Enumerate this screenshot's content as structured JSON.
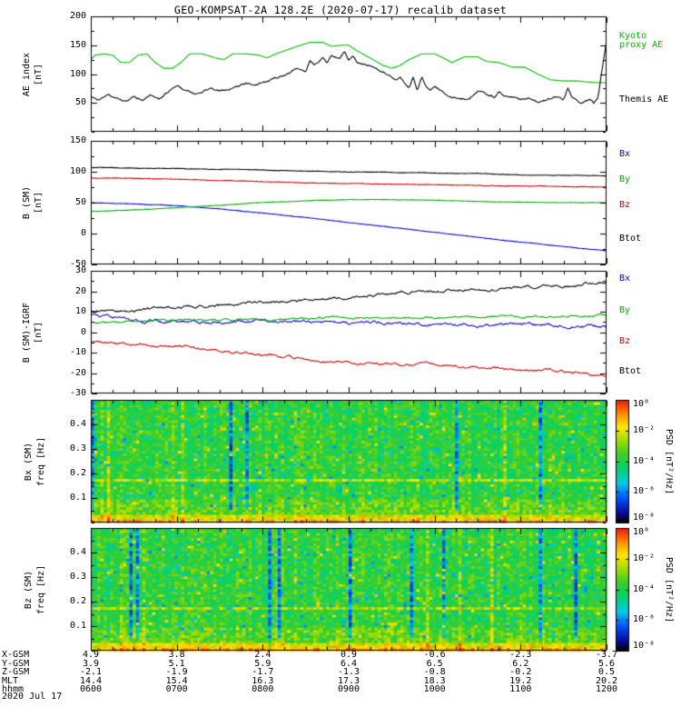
{
  "title": "GEO-KOMPSAT-2A 128.2E (2020-07-17) recalib dataset",
  "chart_data": [
    {
      "type": "line",
      "ylabel": "AE index",
      "ylabel2": "[nT]",
      "ylim": [
        0,
        200
      ],
      "yticks": [
        50,
        100,
        150,
        200
      ],
      "xlim": [
        6,
        12
      ],
      "series": [
        {
          "name": "Kyoto proxy AE",
          "color": "#00bb00",
          "noise": 0,
          "x": [
            6,
            6.05,
            6.15,
            6.25,
            6.35,
            6.45,
            6.55,
            6.65,
            6.75,
            6.85,
            6.95,
            7.05,
            7.15,
            7.3,
            7.45,
            7.55,
            7.65,
            7.8,
            7.95,
            8.05,
            8.15,
            8.25,
            8.4,
            8.55,
            8.7,
            8.8,
            8.9,
            9,
            9.1,
            9.25,
            9.4,
            9.5,
            9.6,
            9.7,
            9.85,
            10,
            10.1,
            10.2,
            10.35,
            10.5,
            10.6,
            10.75,
            10.9,
            11.05,
            11.2,
            11.35,
            11.5,
            11.65,
            11.8,
            11.9,
            12
          ],
          "y": [
            125,
            133,
            135,
            133,
            120,
            120,
            133,
            135,
            120,
            110,
            110,
            120,
            135,
            135,
            128,
            125,
            135,
            135,
            133,
            128,
            135,
            140,
            148,
            155,
            155,
            148,
            150,
            150,
            140,
            128,
            115,
            110,
            115,
            125,
            135,
            135,
            128,
            120,
            130,
            130,
            122,
            120,
            112,
            112,
            100,
            90,
            88,
            88,
            86,
            85,
            85
          ]
        },
        {
          "name": "Themis AE",
          "color": "#000000",
          "noise": 3,
          "x": [
            6,
            6.1,
            6.2,
            6.3,
            6.4,
            6.5,
            6.6,
            6.7,
            6.8,
            6.9,
            7,
            7.1,
            7.2,
            7.3,
            7.4,
            7.5,
            7.6,
            7.7,
            7.8,
            7.9,
            8,
            8.1,
            8.2,
            8.3,
            8.4,
            8.5,
            8.55,
            8.6,
            8.7,
            8.75,
            8.8,
            8.9,
            8.95,
            9,
            9.05,
            9.1,
            9.2,
            9.3,
            9.4,
            9.5,
            9.55,
            9.6,
            9.65,
            9.7,
            9.75,
            9.8,
            9.85,
            9.9,
            9.95,
            10,
            10.1,
            10.2,
            10.3,
            10.4,
            10.5,
            10.6,
            10.7,
            10.75,
            10.8,
            10.9,
            11,
            11.1,
            11.2,
            11.3,
            11.4,
            11.5,
            11.55,
            11.6,
            11.7,
            11.8,
            11.85,
            11.9,
            11.95,
            12
          ],
          "y": [
            62,
            55,
            65,
            58,
            52,
            60,
            55,
            65,
            60,
            70,
            80,
            72,
            65,
            70,
            75,
            70,
            72,
            78,
            85,
            80,
            85,
            90,
            95,
            100,
            110,
            105,
            125,
            115,
            130,
            120,
            135,
            128,
            140,
            125,
            135,
            120,
            115,
            110,
            105,
            95,
            88,
            95,
            85,
            75,
            95,
            70,
            95,
            80,
            72,
            78,
            68,
            60,
            55,
            58,
            70,
            65,
            60,
            72,
            62,
            58,
            55,
            58,
            52,
            55,
            60,
            55,
            75,
            60,
            50,
            55,
            48,
            60,
            110,
            160
          ]
        }
      ],
      "legend": [
        {
          "lines": [
            "Kyoto",
            "proxy AE"
          ],
          "color": "#00bb00"
        },
        {
          "lines": [
            "Themis AE"
          ],
          "color": "#000000"
        }
      ]
    },
    {
      "type": "line",
      "ylabel": "B (SM)",
      "ylabel2": "[nT]",
      "ylim": [
        -50,
        150
      ],
      "yticks": [
        -50,
        0,
        50,
        100,
        150
      ],
      "xlim": [
        6,
        12
      ],
      "series": [
        {
          "name": "Bx",
          "color": "#0000dd",
          "noise": 0.4,
          "x": [
            6,
            6.5,
            7,
            7.5,
            8,
            8.5,
            9,
            9.5,
            10,
            10.5,
            11,
            11.5,
            12
          ],
          "y": [
            50,
            48,
            45,
            40,
            33,
            26,
            18,
            10,
            2,
            -6,
            -14,
            -21,
            -28
          ]
        },
        {
          "name": "By",
          "color": "#00aa00",
          "noise": 0.4,
          "x": [
            6,
            6.5,
            7,
            7.5,
            8,
            8.5,
            9,
            9.5,
            10,
            10.5,
            11,
            11.5,
            12
          ],
          "y": [
            36,
            38,
            42,
            46,
            50,
            53,
            55,
            55,
            54,
            52,
            51,
            50,
            50
          ]
        },
        {
          "name": "Bz",
          "color": "#cc0000",
          "noise": 0.6,
          "x": [
            6,
            6.5,
            7,
            7.5,
            8,
            8.5,
            9,
            9.5,
            10,
            10.5,
            11,
            11.5,
            12
          ],
          "y": [
            90,
            89,
            88,
            86,
            84,
            82,
            81,
            80,
            79,
            78,
            77,
            76,
            75
          ]
        },
        {
          "name": "Btot",
          "color": "#000000",
          "noise": 0.6,
          "x": [
            6,
            6.5,
            7,
            7.5,
            8,
            8.5,
            9,
            9.5,
            10,
            10.5,
            11,
            11.5,
            12
          ],
          "y": [
            107,
            106,
            105,
            104,
            103,
            101,
            100,
            99,
            98,
            97,
            95,
            94,
            93
          ]
        }
      ],
      "legend": [
        {
          "lines": [
            "Bx"
          ],
          "color": "#0000dd"
        },
        {
          "lines": [
            "By"
          ],
          "color": "#00aa00"
        },
        {
          "lines": [
            "Bz"
          ],
          "color": "#cc0000"
        },
        {
          "lines": [
            "Btot"
          ],
          "color": "#000000"
        }
      ]
    },
    {
      "type": "line",
      "ylabel": "B (SM)-IGRF",
      "ylabel2": "[nT]",
      "ylim": [
        -30,
        30
      ],
      "yticks": [
        -30,
        -20,
        -10,
        0,
        10,
        20,
        30
      ],
      "xlim": [
        6,
        12
      ],
      "series": [
        {
          "name": "Bx",
          "color": "#0000dd",
          "noise": 1.2,
          "x": [
            6,
            6.5,
            7,
            7.5,
            8,
            8.5,
            9,
            9.5,
            10,
            10.5,
            11,
            11.5,
            12
          ],
          "y": [
            8,
            6,
            5,
            5,
            5.5,
            5,
            4.5,
            5,
            4,
            3.5,
            4,
            3,
            3
          ]
        },
        {
          "name": "By",
          "color": "#00aa00",
          "noise": 0.8,
          "x": [
            6,
            6.5,
            7,
            7.5,
            8,
            8.5,
            9,
            9.5,
            10,
            10.5,
            11,
            11.5,
            12
          ],
          "y": [
            5,
            5,
            5.5,
            6,
            6,
            6.5,
            7,
            7,
            7,
            7.5,
            7.5,
            8,
            8
          ]
        },
        {
          "name": "Bz",
          "color": "#cc0000",
          "noise": 1.0,
          "x": [
            6,
            6.5,
            7,
            7.5,
            8,
            8.5,
            9,
            9.5,
            10,
            10.5,
            11,
            11.5,
            12
          ],
          "y": [
            -5,
            -6,
            -7,
            -9,
            -11,
            -13,
            -15,
            -16,
            -16,
            -17,
            -18,
            -19,
            -21
          ]
        },
        {
          "name": "Btot",
          "color": "#000000",
          "noise": 1.2,
          "x": [
            6,
            6.5,
            7,
            7.5,
            8,
            8.5,
            9,
            9.5,
            10,
            10.5,
            11,
            11.5,
            12
          ],
          "y": [
            10,
            11,
            12,
            13,
            14.5,
            16,
            17,
            19,
            20,
            21,
            22,
            23,
            25
          ]
        }
      ],
      "legend": [
        {
          "lines": [
            "Bx"
          ],
          "color": "#0000dd"
        },
        {
          "lines": [
            "By"
          ],
          "color": "#00aa00"
        },
        {
          "lines": [
            "Bz"
          ],
          "color": "#cc0000"
        },
        {
          "lines": [
            "Btot"
          ],
          "color": "#000000"
        }
      ]
    },
    {
      "type": "heatmap",
      "ylabel": "Bx (SM)",
      "ylabel2": "freq [Hz]",
      "ylim": [
        0,
        0.5
      ],
      "yticks": [
        0.1,
        0.2,
        0.3,
        0.4
      ],
      "xlim": [
        6,
        12
      ],
      "seed": 20200717,
      "band_freq": 0.17,
      "colorbar": {
        "label": "PSD [nT²/Hz]",
        "ticks": [
          "10⁰",
          "10⁻²",
          "10⁻⁴",
          "10⁻⁶",
          "10⁻⁸"
        ]
      }
    },
    {
      "type": "heatmap",
      "ylabel": "Bz (SM)",
      "ylabel2": "freq [Hz]",
      "ylim": [
        0,
        0.5
      ],
      "yticks": [
        0.1,
        0.2,
        0.3,
        0.4
      ],
      "xlim": [
        6,
        12
      ],
      "seed": 20200731,
      "band_freq": 0.17,
      "colorbar": {
        "label": "PSD [nT²/Hz]",
        "ticks": [
          "10⁰",
          "10⁻²",
          "10⁻⁴",
          "10⁻⁶",
          "10⁻⁸"
        ]
      }
    }
  ],
  "xaxis": {
    "rows": [
      {
        "label": "X-GSM",
        "values": [
          "4.9",
          "3.8",
          "2.4",
          "0.9",
          "-0.6",
          "-2.3",
          "-3.7"
        ]
      },
      {
        "label": "Y-GSM",
        "values": [
          "3.9",
          "5.1",
          "5.9",
          "6.4",
          "6.5",
          "6.2",
          "5.6"
        ]
      },
      {
        "label": "Z-GSM",
        "values": [
          "-2.1",
          "-1.9",
          "-1.7",
          "-1.3",
          "-0.8",
          "-0.2",
          "0.5"
        ]
      },
      {
        "label": "MLT",
        "values": [
          "14.4",
          "15.4",
          "16.3",
          "17.3",
          "18.3",
          "19.2",
          "20.2"
        ]
      },
      {
        "label": "hhmm",
        "values": [
          "0600",
          "0700",
          "0800",
          "0900",
          "1000",
          "1100",
          "1200"
        ]
      }
    ],
    "date": "2020 Jul 17"
  }
}
